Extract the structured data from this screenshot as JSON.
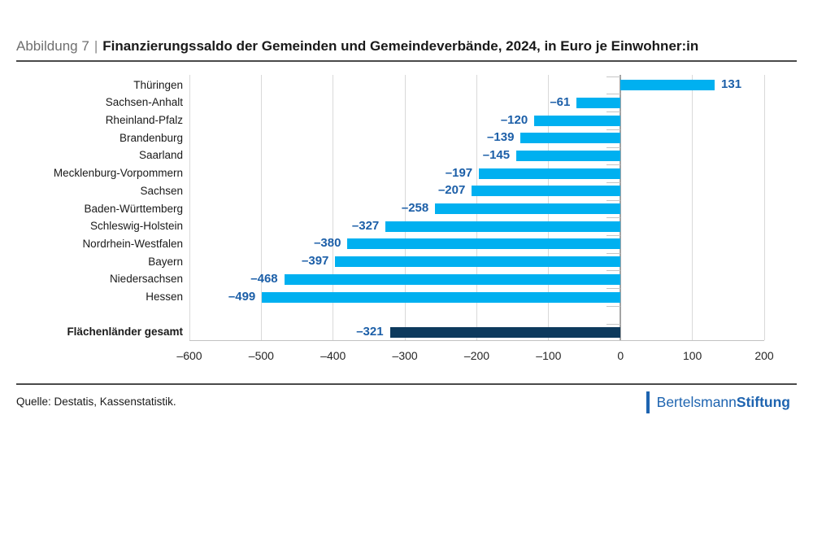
{
  "header": {
    "figure_label": "Abbildung 7",
    "separator": "|",
    "title": "Finanzierungssaldo der Gemeinden und Gemeindeverbände, 2024, in Euro je Einwohner:in"
  },
  "chart_data": {
    "type": "bar",
    "orientation": "horizontal",
    "title": "Finanzierungssaldo der Gemeinden und Gemeindeverbände, 2024, in Euro je Einwohner:in",
    "categories": [
      "Thüringen",
      "Sachsen-Anhalt",
      "Rheinland-Pfalz",
      "Brandenburg",
      "Saarland",
      "Mecklenburg-Vorpommern",
      "Sachsen",
      "Baden-Württemberg",
      "Schleswig-Holstein",
      "Nordrhein-Westfalen",
      "Bayern",
      "Niedersachsen",
      "Hessen"
    ],
    "values": [
      131,
      -61,
      -120,
      -139,
      -145,
      -197,
      -207,
      -258,
      -327,
      -380,
      -397,
      -468,
      -499
    ],
    "value_labels": [
      "131",
      "–61",
      "–120",
      "–139",
      "–145",
      "–197",
      "–207",
      "–258",
      "–327",
      "–380",
      "–397",
      "–468",
      "–499"
    ],
    "total": {
      "label": "Flächenländer gesamt",
      "value": -321,
      "value_label": "–321"
    },
    "xlim": [
      -600,
      200
    ],
    "x_ticks": [
      -600,
      -500,
      -400,
      -300,
      -200,
      -100,
      0,
      100,
      200
    ],
    "x_tick_labels": [
      "–600",
      "–500",
      "–400",
      "–300",
      "–200",
      "–100",
      "0",
      "100",
      "200"
    ],
    "grid": true,
    "legend": null,
    "colors": {
      "bar": "#00b0f0",
      "total_bar": "#0d3a5d",
      "value_label": "#1c5fa8",
      "gridline": "#d9d9d9",
      "zero_axis": "#a3a3a3"
    }
  },
  "footer": {
    "source": "Quelle: Destatis, Kassenstatistik.",
    "logo": {
      "part1": "Bertelsmann",
      "part2": "Stiftung"
    }
  }
}
